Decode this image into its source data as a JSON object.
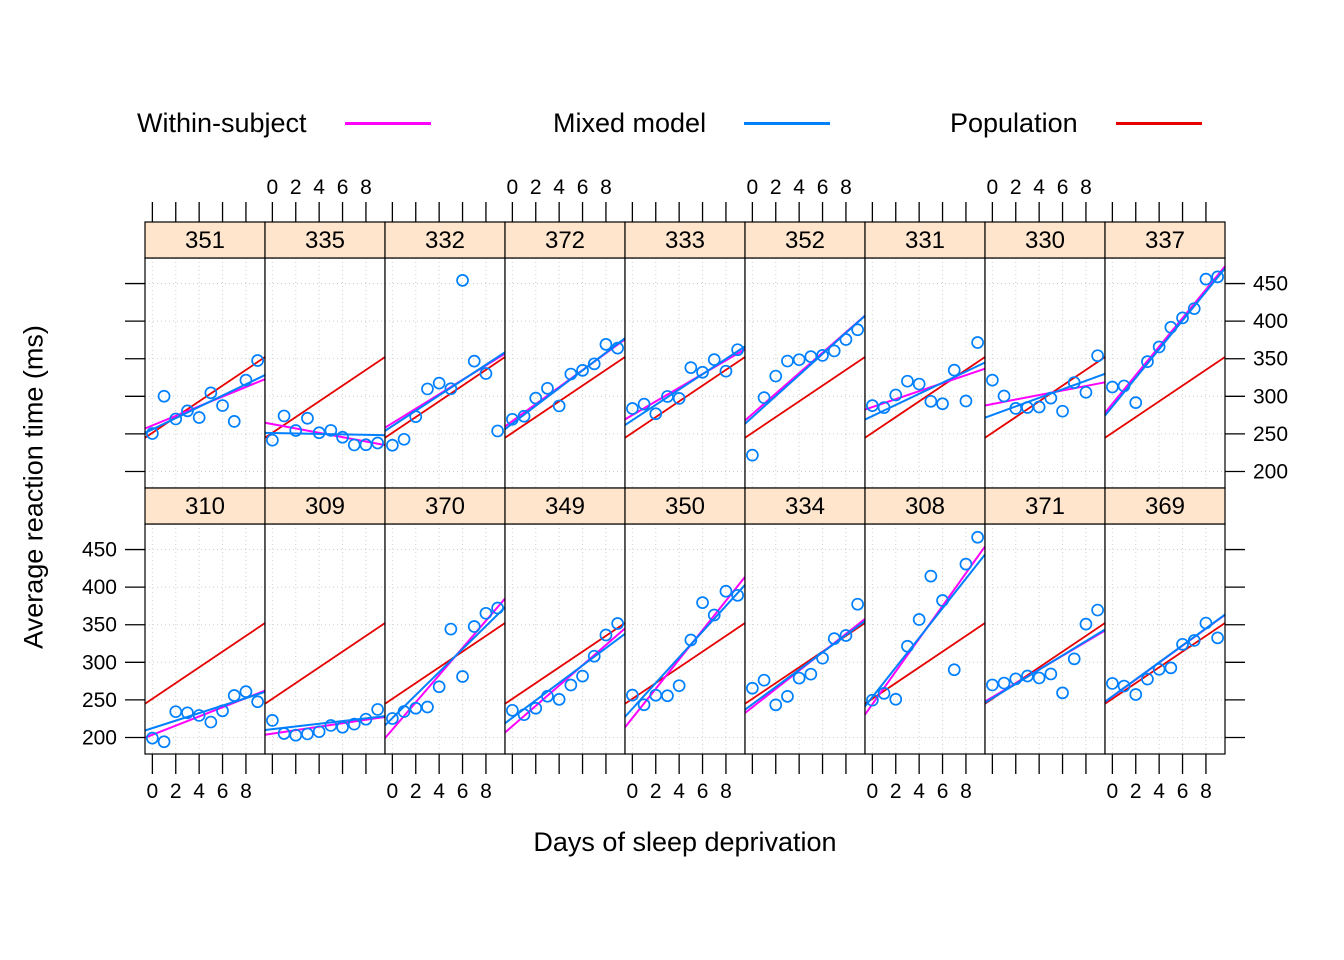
{
  "chart_data": {
    "type": "scatter",
    "title": "",
    "xlabel": "Days of sleep deprivation",
    "ylabel": "Average reaction time (ms)",
    "days": [
      0,
      1,
      2,
      3,
      4,
      5,
      6,
      7,
      8,
      9
    ],
    "xlim": [
      -0.63,
      9.63
    ],
    "ylim": [
      178,
      484
    ],
    "x_ticks": [
      0,
      2,
      4,
      6,
      8
    ],
    "y_ticks": [
      200,
      250,
      300,
      350,
      400,
      450
    ],
    "grid": true,
    "legend_position": "top",
    "legend": [
      {
        "label": "Within-subject",
        "color": "#ff00ff"
      },
      {
        "label": "Mixed model",
        "color": "#0080ff"
      },
      {
        "label": "Population",
        "color": "#e60000"
      }
    ],
    "colors": {
      "within": "#ff00ff",
      "mixed": "#0080ff",
      "population": "#e60000",
      "points": "#0080ff",
      "strip_fill": "#ffe5cc",
      "grid": "#cfcfcf",
      "panel_border": "#000000"
    },
    "population_line": {
      "intercept": 251.4,
      "slope": 10.47
    },
    "rows": [
      [
        "351",
        "335",
        "332",
        "372",
        "333",
        "352",
        "331",
        "330",
        "337"
      ],
      [
        "310",
        "309",
        "370",
        "349",
        "350",
        "334",
        "308",
        "371",
        "369"
      ]
    ],
    "subjects": {
      "351": {
        "points": [
          250.5,
          300.1,
          269.9,
          280.6,
          271.8,
          304.6,
          287.7,
          266.6,
          321.5,
          347.6
        ],
        "within": [
          261.2,
          6.4
        ],
        "mixed": [
          256.0,
          7.5
        ]
      },
      "335": {
        "points": [
          241.6,
          273.9,
          254.5,
          270.8,
          251.5,
          254.6,
          245.5,
          235.3,
          235.5,
          237.9
        ],
        "within": [
          263.0,
          -2.9
        ],
        "mixed": [
          251.1,
          -0.3
        ]
      },
      "332": {
        "points": [
          234.9,
          242.8,
          273.0,
          309.8,
          317.5,
          310.0,
          454.2,
          346.8,
          330.3,
          253.9
        ],
        "within": [
          264.3,
          9.6
        ],
        "mixed": [
          260.4,
          10.2
        ]
      },
      "372": {
        "points": [
          269.4,
          273.5,
          297.6,
          310.6,
          287.2,
          329.6,
          334.5,
          343.2,
          369.1,
          364.1
        ],
        "within": [
          267.0,
          11.3
        ],
        "mixed": [
          263.7,
          11.8
        ]
      },
      "333": {
        "points": [
          283.8,
          289.6,
          276.8,
          299.8,
          297.2,
          338.2,
          332.0,
          348.8,
          333.4,
          362.0
        ],
        "within": [
          275.0,
          9.1
        ],
        "mixed": [
          268.2,
          10.2
        ]
      },
      "352": {
        "points": [
          221.7,
          298.2,
          326.9,
          346.9,
          348.7,
          352.8,
          354.4,
          360.4,
          375.6,
          388.5
        ],
        "within": [
          276.4,
          13.6
        ],
        "mixed": [
          272.3,
          14.0
        ]
      },
      "331": {
        "points": [
          287.6,
          285.0,
          301.8,
          320.1,
          316.3,
          293.3,
          290.1,
          334.8,
          293.7,
          371.6
        ],
        "within": [
          285.7,
          5.3
        ],
        "mixed": [
          273.7,
          7.4
        ]
      },
      "330": {
        "points": [
          321.5,
          300.4,
          283.9,
          285.1,
          285.8,
          297.6,
          280.2,
          318.3,
          305.3,
          354.0
        ],
        "within": [
          289.7,
          3.0
        ],
        "mixed": [
          275.1,
          5.7
        ]
      },
      "337": {
        "points": [
          312.4,
          313.8,
          291.6,
          346.1,
          365.7,
          391.8,
          404.3,
          416.7,
          455.9,
          458.9
        ],
        "within": [
          290.1,
          19.0
        ],
        "mixed": [
          286.3,
          19.1
        ]
      },
      "310": {
        "points": [
          199.1,
          194.3,
          234.3,
          232.8,
          229.3,
          220.5,
          235.4,
          255.8,
          261.0,
          247.5
        ],
        "within": [
          203.5,
          6.1
        ],
        "mixed": [
          212.4,
          5.0
        ]
      },
      "309": {
        "points": [
          222.7,
          205.3,
          203.0,
          204.7,
          207.7,
          216.0,
          213.6,
          217.7,
          224.3,
          237.3
        ],
        "within": [
          205.1,
          2.3
        ],
        "mixed": [
          211.0,
          1.8
        ]
      },
      "370": {
        "points": [
          225.3,
          234.5,
          238.9,
          240.5,
          267.5,
          344.2,
          281.1,
          347.6,
          365.2,
          372.2
        ],
        "within": [
          210.5,
          18.1
        ],
        "mixed": [
          225.8,
          15.3
        ]
      },
      "349": {
        "points": [
          236.1,
          230.3,
          238.9,
          254.9,
          250.7,
          269.8,
          281.6,
          308.1,
          336.3,
          351.6
        ],
        "within": [
          215.1,
          13.5
        ],
        "mixed": [
          226.2,
          11.6
        ]
      },
      "350": {
        "points": [
          256.3,
          243.5,
          256.2,
          255.5,
          268.9,
          329.7,
          379.4,
          362.9,
          394.5,
          389.1
        ],
        "within": [
          225.8,
          19.5
        ],
        "mixed": [
          238.3,
          17.1
        ]
      },
      "334": {
        "points": [
          265.5,
          276.2,
          243.4,
          254.7,
          279.0,
          284.2,
          305.5,
          331.5,
          335.7,
          377.3
        ],
        "within": [
          240.2,
          12.2
        ],
        "mixed": [
          244.2,
          11.5
        ]
      },
      "308": {
        "points": [
          249.6,
          258.7,
          250.8,
          321.4,
          356.9,
          414.7,
          382.2,
          290.1,
          430.6,
          466.4
        ],
        "within": [
          244.2,
          21.8
        ],
        "mixed": [
          253.7,
          19.7
        ]
      },
      "371": {
        "points": [
          269.9,
          272.4,
          277.9,
          281.8,
          279.2,
          284.5,
          259.3,
          304.6,
          350.8,
          369.5
        ],
        "within": [
          253.6,
          9.2
        ],
        "mixed": [
          252.2,
          9.5
        ]
      },
      "369": {
        "points": [
          271.9,
          268.4,
          257.2,
          277.7,
          290.7,
          292.6,
          323.9,
          329.1,
          352.2,
          332.5
        ],
        "within": [
          254.4,
          11.3
        ],
        "mixed": [
          254.7,
          11.3
        ]
      }
    }
  }
}
